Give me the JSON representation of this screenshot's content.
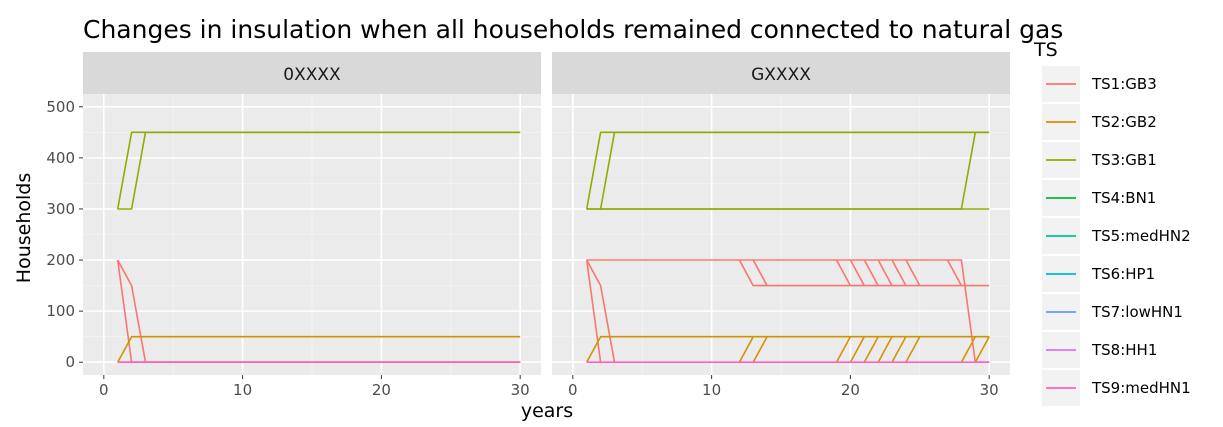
{
  "chart_data": {
    "type": "line",
    "title": "Changes in insulation when all households remained connected to natural gas",
    "xlabel": "years",
    "ylabel": "Households",
    "xlim": [
      -1.5,
      31.5
    ],
    "ylim": [
      -25,
      525
    ],
    "x_ticks": [
      0,
      10,
      20,
      30
    ],
    "y_ticks": [
      0,
      100,
      200,
      300,
      400,
      500
    ],
    "grid": true,
    "legend_title": "TS",
    "legend_position": "right",
    "legend": [
      {
        "name": "TS1:GB3",
        "color": "#F8766D"
      },
      {
        "name": "TS2:GB2",
        "color": "#D39200"
      },
      {
        "name": "TS3:GB1",
        "color": "#93AA00"
      },
      {
        "name": "TS4:BN1",
        "color": "#00BA38"
      },
      {
        "name": "TS5:medHN2",
        "color": "#00C19F"
      },
      {
        "name": "TS6:HP1",
        "color": "#00B9E3"
      },
      {
        "name": "TS7:lowHN1",
        "color": "#619CFF"
      },
      {
        "name": "TS8:HH1",
        "color": "#DB72FB"
      },
      {
        "name": "TS9:medHN1",
        "color": "#FF61C3"
      }
    ],
    "panels": [
      {
        "strip": "0XXXX",
        "series": [
          {
            "name": "TS3:GB1",
            "color": "#93AA00",
            "polylines": [
              {
                "x": [
                  1,
                  2,
                  30
                ],
                "y": [
                  300,
                  450,
                  450
                ]
              },
              {
                "x": [
                  1,
                  2,
                  3,
                  30
                ],
                "y": [
                  300,
                  300,
                  450,
                  450
                ]
              }
            ]
          },
          {
            "name": "TS1:GB3",
            "color": "#F8766D",
            "polylines": [
              {
                "x": [
                  1,
                  2,
                  30
                ],
                "y": [
                  200,
                  0,
                  0
                ]
              },
              {
                "x": [
                  1,
                  2,
                  3,
                  30
                ],
                "y": [
                  200,
                  150,
                  0,
                  0
                ]
              }
            ]
          },
          {
            "name": "TS2:GB2",
            "color": "#D39200",
            "polylines": [
              {
                "x": [
                  1,
                  2,
                  30
                ],
                "y": [
                  0,
                  50,
                  50
                ]
              },
              {
                "x": [
                  1,
                  2,
                  30
                ],
                "y": [
                  0,
                  0,
                  0
                ]
              }
            ]
          },
          {
            "name": "TS9:medHN1",
            "color": "#FF61C3",
            "polylines": [
              {
                "x": [
                  1,
                  30
                ],
                "y": [
                  0,
                  0
                ]
              }
            ]
          }
        ]
      },
      {
        "strip": "GXXXX",
        "series": [
          {
            "name": "TS3:GB1",
            "color": "#93AA00",
            "polylines": [
              {
                "x": [
                  1,
                  2,
                  29,
                  30
                ],
                "y": [
                  300,
                  450,
                  450,
                  450
                ]
              },
              {
                "x": [
                  1,
                  2,
                  3,
                  30
                ],
                "y": [
                  300,
                  300,
                  450,
                  450
                ]
              },
              {
                "x": [
                  1,
                  28,
                  29
                ],
                "y": [
                  300,
                  300,
                  450
                ]
              },
              {
                "x": [
                  2,
                  30
                ],
                "y": [
                  300,
                  300
                ]
              }
            ]
          },
          {
            "name": "TS1:GB3",
            "color": "#F8766D",
            "polylines": [
              {
                "x": [
                  1,
                  28,
                  29,
                  30
                ],
                "y": [
                  200,
                  200,
                  0,
                  0
                ]
              },
              {
                "x": [
                  1,
                  2,
                  3
                ],
                "y": [
                  200,
                  150,
                  0
                ]
              },
              {
                "x": [
                  1,
                  2
                ],
                "y": [
                  200,
                  0
                ]
              },
              {
                "x": [
                  12,
                  13,
                  30
                ],
                "y": [
                  200,
                  150,
                  150
                ]
              },
              {
                "x": [
                  13,
                  14
                ],
                "y": [
                  200,
                  150
                ]
              },
              {
                "x": [
                  19,
                  20
                ],
                "y": [
                  200,
                  150
                ]
              },
              {
                "x": [
                  20,
                  21
                ],
                "y": [
                  200,
                  150
                ]
              },
              {
                "x": [
                  21,
                  22
                ],
                "y": [
                  200,
                  150
                ]
              },
              {
                "x": [
                  22,
                  23
                ],
                "y": [
                  200,
                  150
                ]
              },
              {
                "x": [
                  23,
                  24
                ],
                "y": [
                  200,
                  150
                ]
              },
              {
                "x": [
                  24,
                  25
                ],
                "y": [
                  200,
                  150
                ]
              },
              {
                "x": [
                  27,
                  28
                ],
                "y": [
                  200,
                  150
                ]
              }
            ]
          },
          {
            "name": "TS2:GB2",
            "color": "#D39200",
            "polylines": [
              {
                "x": [
                  1,
                  2,
                  30
                ],
                "y": [
                  0,
                  50,
                  50
                ]
              },
              {
                "x": [
                  12,
                  13
                ],
                "y": [
                  0,
                  50
                ]
              },
              {
                "x": [
                  13,
                  14
                ],
                "y": [
                  0,
                  50
                ]
              },
              {
                "x": [
                  19,
                  20
                ],
                "y": [
                  0,
                  50
                ]
              },
              {
                "x": [
                  20,
                  21
                ],
                "y": [
                  0,
                  50
                ]
              },
              {
                "x": [
                  21,
                  22
                ],
                "y": [
                  0,
                  50
                ]
              },
              {
                "x": [
                  22,
                  23
                ],
                "y": [
                  0,
                  50
                ]
              },
              {
                "x": [
                  23,
                  24
                ],
                "y": [
                  0,
                  50
                ]
              },
              {
                "x": [
                  24,
                  25
                ],
                "y": [
                  0,
                  50
                ]
              },
              {
                "x": [
                  28,
                  29
                ],
                "y": [
                  0,
                  50
                ]
              },
              {
                "x": [
                  29,
                  30
                ],
                "y": [
                  0,
                  50
                ]
              }
            ]
          },
          {
            "name": "TS9:medHN1",
            "color": "#FF61C3",
            "polylines": [
              {
                "x": [
                  1,
                  30
                ],
                "y": [
                  0,
                  0
                ]
              }
            ]
          }
        ]
      }
    ]
  }
}
